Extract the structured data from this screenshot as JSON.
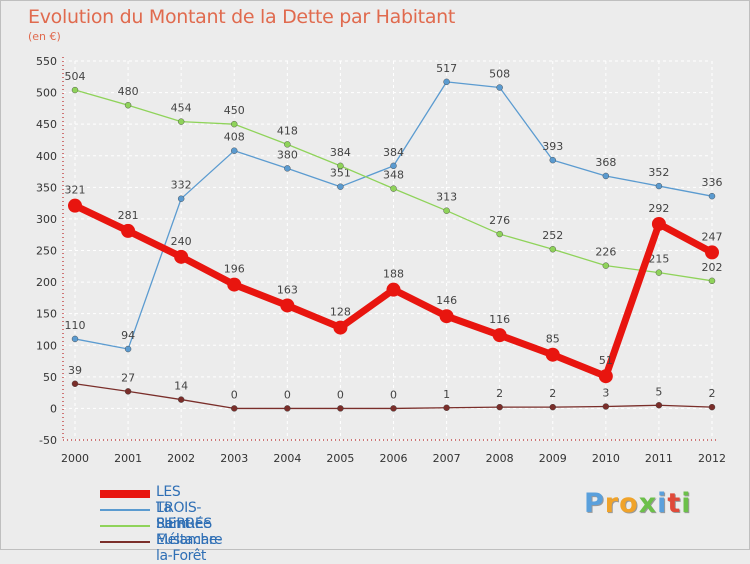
{
  "header": {
    "title": "Evolution du Montant de la Dette par Habitant",
    "subtitle": "(en €)"
  },
  "logo": {
    "text": "Proxiti",
    "letters": [
      "P",
      "r",
      "o",
      "x",
      "i",
      "t",
      "i"
    ]
  },
  "chart_data": {
    "type": "line",
    "title": "Evolution du Montant de la Dette par Habitant",
    "subtitle": "(en €)",
    "x": [
      "2000",
      "2001",
      "2002",
      "2003",
      "2004",
      "2005",
      "2006",
      "2007",
      "2008",
      "2009",
      "2010",
      "2011",
      "2012"
    ],
    "ylim": [
      -50,
      550
    ],
    "yticks": [
      -50,
      0,
      50,
      100,
      150,
      200,
      250,
      300,
      350,
      400,
      450,
      500,
      550
    ],
    "grid": true,
    "legend_position": "bottom-left",
    "series": [
      {
        "name": "LES TROIS-PIERRES",
        "color": "#e8150f",
        "width": "thick",
        "values": [
          321,
          281,
          240,
          196,
          163,
          128,
          188,
          146,
          116,
          85,
          51,
          292,
          247
        ]
      },
      {
        "name": "La Remuée",
        "color": "#5b9bd0",
        "width": "thin",
        "values": [
          110,
          94,
          332,
          408,
          380,
          351,
          384,
          517,
          508,
          393,
          368,
          352,
          336
        ]
      },
      {
        "name": "Saint-Eustache-la-Forêt",
        "color": "#8fd35a",
        "width": "thin",
        "values": [
          504,
          480,
          454,
          450,
          418,
          384,
          348,
          313,
          276,
          252,
          226,
          215,
          202
        ]
      },
      {
        "name": "Mélamare",
        "color": "#7a2e2a",
        "width": "thin",
        "values": [
          39,
          27,
          14,
          0,
          0,
          0,
          0,
          1,
          2,
          2,
          3,
          5,
          2
        ]
      }
    ]
  }
}
